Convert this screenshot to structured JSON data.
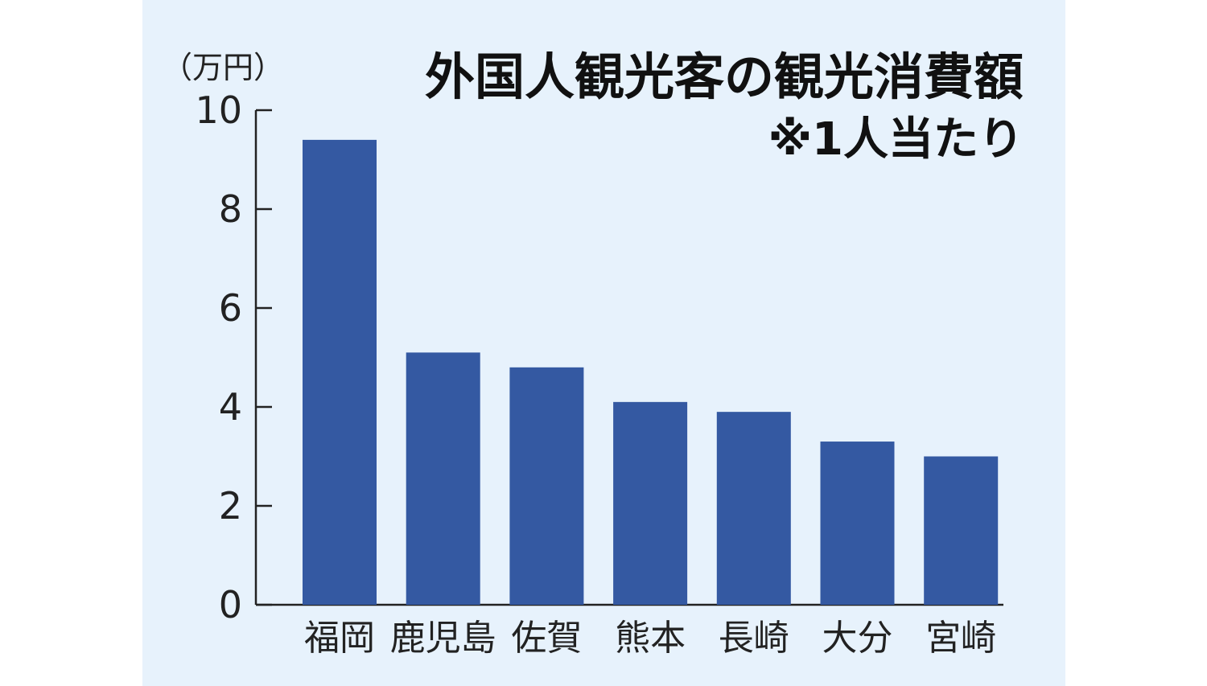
{
  "chart_data": {
    "type": "bar",
    "title": "外国人観光客の観光消費額",
    "subtitle": "※1人当たり",
    "ylabel": "（万円）",
    "xlabel": "",
    "ylim": [
      0,
      10
    ],
    "yticks": [
      "0",
      "2",
      "4",
      "6",
      "8",
      "10"
    ],
    "categories": [
      "福岡",
      "鹿児島",
      "佐賀",
      "熊本",
      "長崎",
      "大分",
      "宮崎"
    ],
    "values": [
      9.4,
      5.1,
      4.8,
      4.1,
      3.9,
      3.3,
      3.0
    ],
    "bar_color": "#3459a2",
    "background_color": "#e7f2fc",
    "grid": false,
    "legend": "none"
  }
}
